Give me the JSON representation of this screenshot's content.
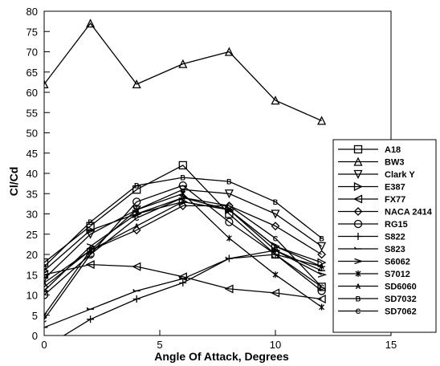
{
  "chart_data": {
    "type": "line",
    "xlabel": "Angle Of Attack, Degrees",
    "ylabel": "Cl/Cd",
    "xlim": [
      0,
      15
    ],
    "ylim": [
      0,
      80
    ],
    "x_ticks": [
      0,
      5,
      10,
      15
    ],
    "y_ticks": [
      0,
      5,
      10,
      15,
      20,
      25,
      30,
      35,
      40,
      45,
      50,
      55,
      60,
      65,
      70,
      75,
      80
    ],
    "grid": false,
    "legend_position": "right",
    "series": [
      {
        "name": "A18",
        "marker": "square",
        "x": [
          0,
          2,
          4,
          6,
          8,
          10,
          12
        ],
        "y": [
          18,
          27,
          36,
          42,
          30,
          20,
          12
        ]
      },
      {
        "name": "BW3",
        "marker": "triangle-up",
        "x": [
          0,
          2,
          4,
          6,
          8,
          10,
          12
        ],
        "y": [
          62,
          77,
          62,
          67,
          70,
          58,
          53
        ]
      },
      {
        "name": "Clark Y",
        "marker": "triangle-down",
        "x": [
          0,
          2,
          4,
          6,
          8,
          10,
          12
        ],
        "y": [
          14,
          25,
          31,
          36,
          35,
          30,
          22
        ]
      },
      {
        "name": "E387",
        "marker": "triangle-right",
        "x": [
          0,
          2,
          4,
          6,
          8,
          10,
          12
        ],
        "y": [
          16,
          26,
          30,
          33,
          31,
          22,
          18
        ]
      },
      {
        "name": "FX77",
        "marker": "triangle-left",
        "x": [
          0,
          2,
          4,
          6,
          8,
          10,
          12
        ],
        "y": [
          15,
          17.5,
          17,
          14.5,
          11.5,
          10.5,
          9
        ]
      },
      {
        "name": "NACA 2414",
        "marker": "diamond",
        "x": [
          0,
          2,
          4,
          6,
          8,
          10,
          12
        ],
        "y": [
          12,
          21,
          26,
          32,
          32,
          27,
          20
        ]
      },
      {
        "name": "RG15",
        "marker": "circle",
        "x": [
          0,
          2,
          4,
          6,
          8,
          10,
          12
        ],
        "y": [
          10,
          20,
          33,
          37,
          28,
          20,
          11
        ]
      },
      {
        "name": "S822",
        "marker": "plus",
        "x": [
          0,
          2,
          4,
          6,
          8,
          10,
          12
        ],
        "y": [
          -3,
          4,
          9,
          13,
          19,
          20,
          17
        ]
      },
      {
        "name": "S823",
        "marker": "dash",
        "x": [
          0,
          2,
          4,
          6,
          8,
          10,
          12
        ],
        "y": [
          2,
          6.5,
          11,
          14,
          19,
          21,
          16
        ]
      },
      {
        "name": "S6062",
        "marker": "arrow",
        "x": [
          0,
          2,
          4,
          6,
          8,
          10,
          12
        ],
        "y": [
          11,
          22,
          30,
          34,
          31,
          21,
          15
        ]
      },
      {
        "name": "S7012",
        "marker": "star",
        "x": [
          0,
          2,
          4,
          6,
          8,
          10,
          12
        ],
        "y": [
          5,
          21,
          31,
          35,
          24,
          15,
          7
        ]
      },
      {
        "name": "SD6060",
        "marker": "letter-A",
        "x": [
          0,
          2,
          4,
          6,
          8,
          10,
          12
        ],
        "y": [
          13,
          21,
          27,
          33,
          31,
          22,
          17
        ]
      },
      {
        "name": "SD7032",
        "marker": "letter-B",
        "x": [
          0,
          2,
          4,
          6,
          8,
          10,
          12
        ],
        "y": [
          17,
          28,
          37,
          39,
          38,
          33,
          24
        ]
      },
      {
        "name": "SD7062",
        "marker": "letter-C",
        "x": [
          0,
          2,
          4,
          6,
          8,
          10,
          12
        ],
        "y": [
          4,
          20,
          29,
          34,
          32,
          24,
          12
        ]
      }
    ]
  }
}
